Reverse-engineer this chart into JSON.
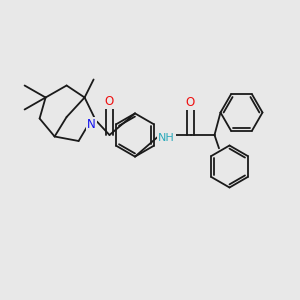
{
  "bg_color": "#e8e8e8",
  "bond_color": "#1a1a1a",
  "N_color": "#1010ee",
  "O_color": "#ee1010",
  "NH_color": "#2aaabb",
  "line_width": 1.3,
  "figsize": [
    3.0,
    3.0
  ],
  "dpi": 100,
  "xlim": [
    0,
    10
  ],
  "ylim": [
    0,
    10
  ]
}
